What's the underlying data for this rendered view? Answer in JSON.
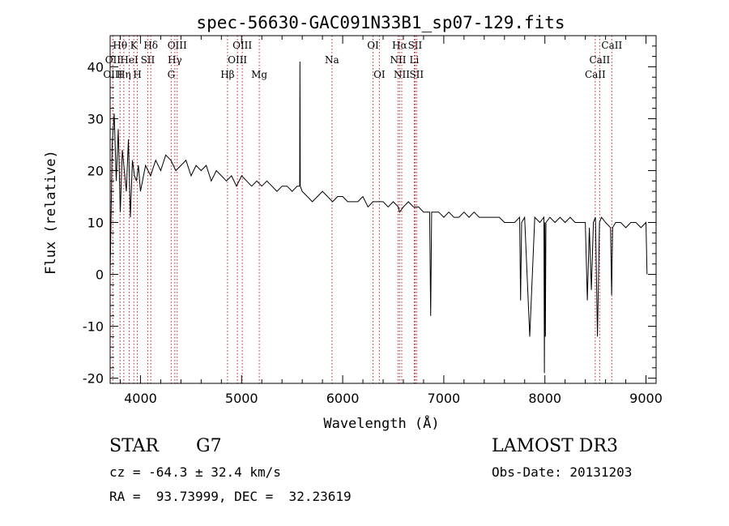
{
  "chart_data": {
    "type": "line",
    "title": "spec-56630-GAC091N33B1_sp07-129.fits",
    "xlabel": "Wavelength (Å)",
    "ylabel": "Flux (relative)",
    "xlim": [
      3700,
      9100
    ],
    "ylim": [
      -21,
      46
    ],
    "xticks": [
      4000,
      5000,
      6000,
      7000,
      8000,
      9000
    ],
    "yticks": [
      -20,
      -10,
      0,
      10,
      20,
      30,
      40
    ],
    "series": [
      {
        "name": "flux",
        "x": [
          3700,
          3720,
          3740,
          3760,
          3780,
          3800,
          3820,
          3840,
          3860,
          3880,
          3900,
          3920,
          3940,
          3960,
          3980,
          4000,
          4050,
          4100,
          4150,
          4200,
          4250,
          4300,
          4350,
          4400,
          4450,
          4500,
          4550,
          4600,
          4650,
          4700,
          4750,
          4800,
          4850,
          4900,
          4950,
          5000,
          5050,
          5100,
          5150,
          5200,
          5250,
          5300,
          5350,
          5400,
          5450,
          5500,
          5550,
          5575,
          5577,
          5580,
          5600,
          5650,
          5700,
          5750,
          5800,
          5850,
          5900,
          5950,
          6000,
          6050,
          6100,
          6150,
          6200,
          6250,
          6300,
          6350,
          6400,
          6450,
          6500,
          6550,
          6563,
          6600,
          6650,
          6700,
          6750,
          6800,
          6850,
          6860,
          6870,
          6880,
          6900,
          6950,
          7000,
          7050,
          7100,
          7150,
          7200,
          7250,
          7300,
          7350,
          7400,
          7450,
          7500,
          7550,
          7600,
          7650,
          7700,
          7750,
          7760,
          7770,
          7800,
          7850,
          7900,
          7950,
          7990,
          7995,
          8000,
          8005,
          8010,
          8050,
          8100,
          8150,
          8200,
          8250,
          8300,
          8350,
          8400,
          8420,
          8440,
          8460,
          8480,
          8500,
          8520,
          8540,
          8560,
          8600,
          8650,
          8660,
          8670,
          8700,
          8750,
          8800,
          8850,
          8900,
          8950,
          9000,
          9010
        ],
        "values": [
          0,
          25,
          31,
          18,
          28,
          12,
          24,
          20,
          16,
          26,
          11,
          22,
          19,
          18,
          21,
          16,
          21,
          19,
          22,
          20,
          23,
          22,
          20,
          21,
          22,
          19,
          21,
          20,
          21,
          18,
          20,
          19,
          18,
          19,
          17,
          19,
          18,
          17,
          18,
          17,
          18,
          17,
          16,
          17,
          17,
          16,
          17,
          17,
          41,
          17,
          16,
          15,
          14,
          15,
          16,
          15,
          14,
          15,
          15,
          14,
          14,
          14,
          15,
          13,
          14,
          14,
          14,
          13,
          14,
          13,
          12,
          13,
          14,
          13,
          13,
          12,
          12,
          12,
          -8,
          12,
          12,
          12,
          11,
          12,
          11,
          11,
          12,
          11,
          12,
          11,
          11,
          11,
          11,
          11,
          10,
          10,
          10,
          11,
          -5,
          10,
          11,
          -12,
          11,
          10,
          11,
          -19,
          10,
          -12,
          10,
          11,
          10,
          11,
          10,
          11,
          10,
          10,
          10,
          -5,
          9,
          -3,
          10,
          11,
          -12,
          10,
          11,
          10,
          9,
          -4,
          9,
          10,
          10,
          9,
          10,
          10,
          9,
          10,
          0
        ]
      }
    ],
    "line_markers": [
      {
        "label": "Hθ",
        "x": 3798,
        "row": 1
      },
      {
        "label": "OII",
        "x": 3727,
        "row": 2
      },
      {
        "label": "OIII",
        "x": 3727,
        "row": 3
      },
      {
        "label": "K",
        "x": 3934,
        "row": 1
      },
      {
        "label": "HeI",
        "x": 3889,
        "row": 2
      },
      {
        "label": "Hη",
        "x": 3835,
        "row": 3
      },
      {
        "label": "SII",
        "x": 4072,
        "row": 2
      },
      {
        "label": "H",
        "x": 3969,
        "row": 3
      },
      {
        "label": "Hδ",
        "x": 4102,
        "row": 1
      },
      {
        "label": "OIII",
        "x": 4363,
        "row": 1
      },
      {
        "label": "Hγ",
        "x": 4340,
        "row": 2
      },
      {
        "label": "G",
        "x": 4304,
        "row": 3
      },
      {
        "label": "OIII",
        "x": 5007,
        "row": 1
      },
      {
        "label": "OIII",
        "x": 4959,
        "row": 2
      },
      {
        "label": "Hβ",
        "x": 4861,
        "row": 3
      },
      {
        "label": "Mg",
        "x": 5175,
        "row": 3
      },
      {
        "label": "Na",
        "x": 5894,
        "row": 2
      },
      {
        "label": "OI",
        "x": 6300,
        "row": 1
      },
      {
        "label": "OI",
        "x": 6363,
        "row": 3
      },
      {
        "label": "Hα",
        "x": 6563,
        "row": 1
      },
      {
        "label": "SII",
        "x": 6716,
        "row": 1
      },
      {
        "label": "NII",
        "x": 6548,
        "row": 2
      },
      {
        "label": "Li",
        "x": 6708,
        "row": 2
      },
      {
        "label": "NII",
        "x": 6584,
        "row": 3
      },
      {
        "label": "SII",
        "x": 6731,
        "row": 3
      },
      {
        "label": "CaII",
        "x": 8662,
        "row": 1
      },
      {
        "label": "CaII",
        "x": 8542,
        "row": 2
      },
      {
        "label": "CaII",
        "x": 8498,
        "row": 3
      }
    ]
  },
  "info": {
    "object_type": "STAR",
    "subclass": "G7",
    "survey": "LAMOST DR3",
    "redshift_line": "cz = -64.3 ± 32.4 km/s",
    "obs_date_line": "Obs-Date: 20131203",
    "coords_line": "RA =  93.73999, DEC =  32.23619"
  }
}
